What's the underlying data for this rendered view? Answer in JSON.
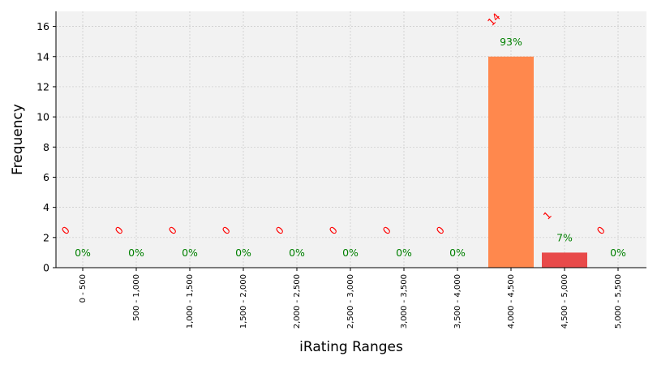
{
  "chart_data": {
    "type": "bar",
    "title": "",
    "xlabel": "iRating Ranges",
    "ylabel": "Frequency",
    "categories": [
      "0 - 500",
      "500 - 1,000",
      "1,000 - 1,500",
      "1,500 - 2,000",
      "2,000 - 2,500",
      "2,500 - 3,000",
      "3,000 - 3,500",
      "3,500 - 4,000",
      "4,000 - 4,500",
      "4,500 - 5,000",
      "5,000 - 5,500"
    ],
    "values": [
      0,
      0,
      0,
      0,
      0,
      0,
      0,
      0,
      14,
      1,
      0
    ],
    "count_labels": [
      "0",
      "0",
      "0",
      "0",
      "0",
      "0",
      "0",
      "0",
      "14",
      "1",
      "0"
    ],
    "percent_labels": [
      "0%",
      "0%",
      "0%",
      "0%",
      "0%",
      "0%",
      "0%",
      "0%",
      "93%",
      "7%",
      "0%"
    ],
    "bar_colors": [
      "#f0f0f0",
      "#f0f0f0",
      "#f0f0f0",
      "#f0f0f0",
      "#f0f0f0",
      "#f0f0f0",
      "#f0f0f0",
      "#f0f0f0",
      "#ff884d",
      "#e84a4a",
      "#f0f0f0"
    ],
    "ylim": [
      0,
      17
    ],
    "yticks": [
      0,
      2,
      4,
      6,
      8,
      10,
      12,
      14,
      16
    ],
    "grid": true,
    "legend": "none",
    "colors": {
      "plot_background": "#f2f2f2",
      "grid": "#c8c8c8",
      "count_label": "#ff0000",
      "percent_label": "#008000"
    }
  }
}
